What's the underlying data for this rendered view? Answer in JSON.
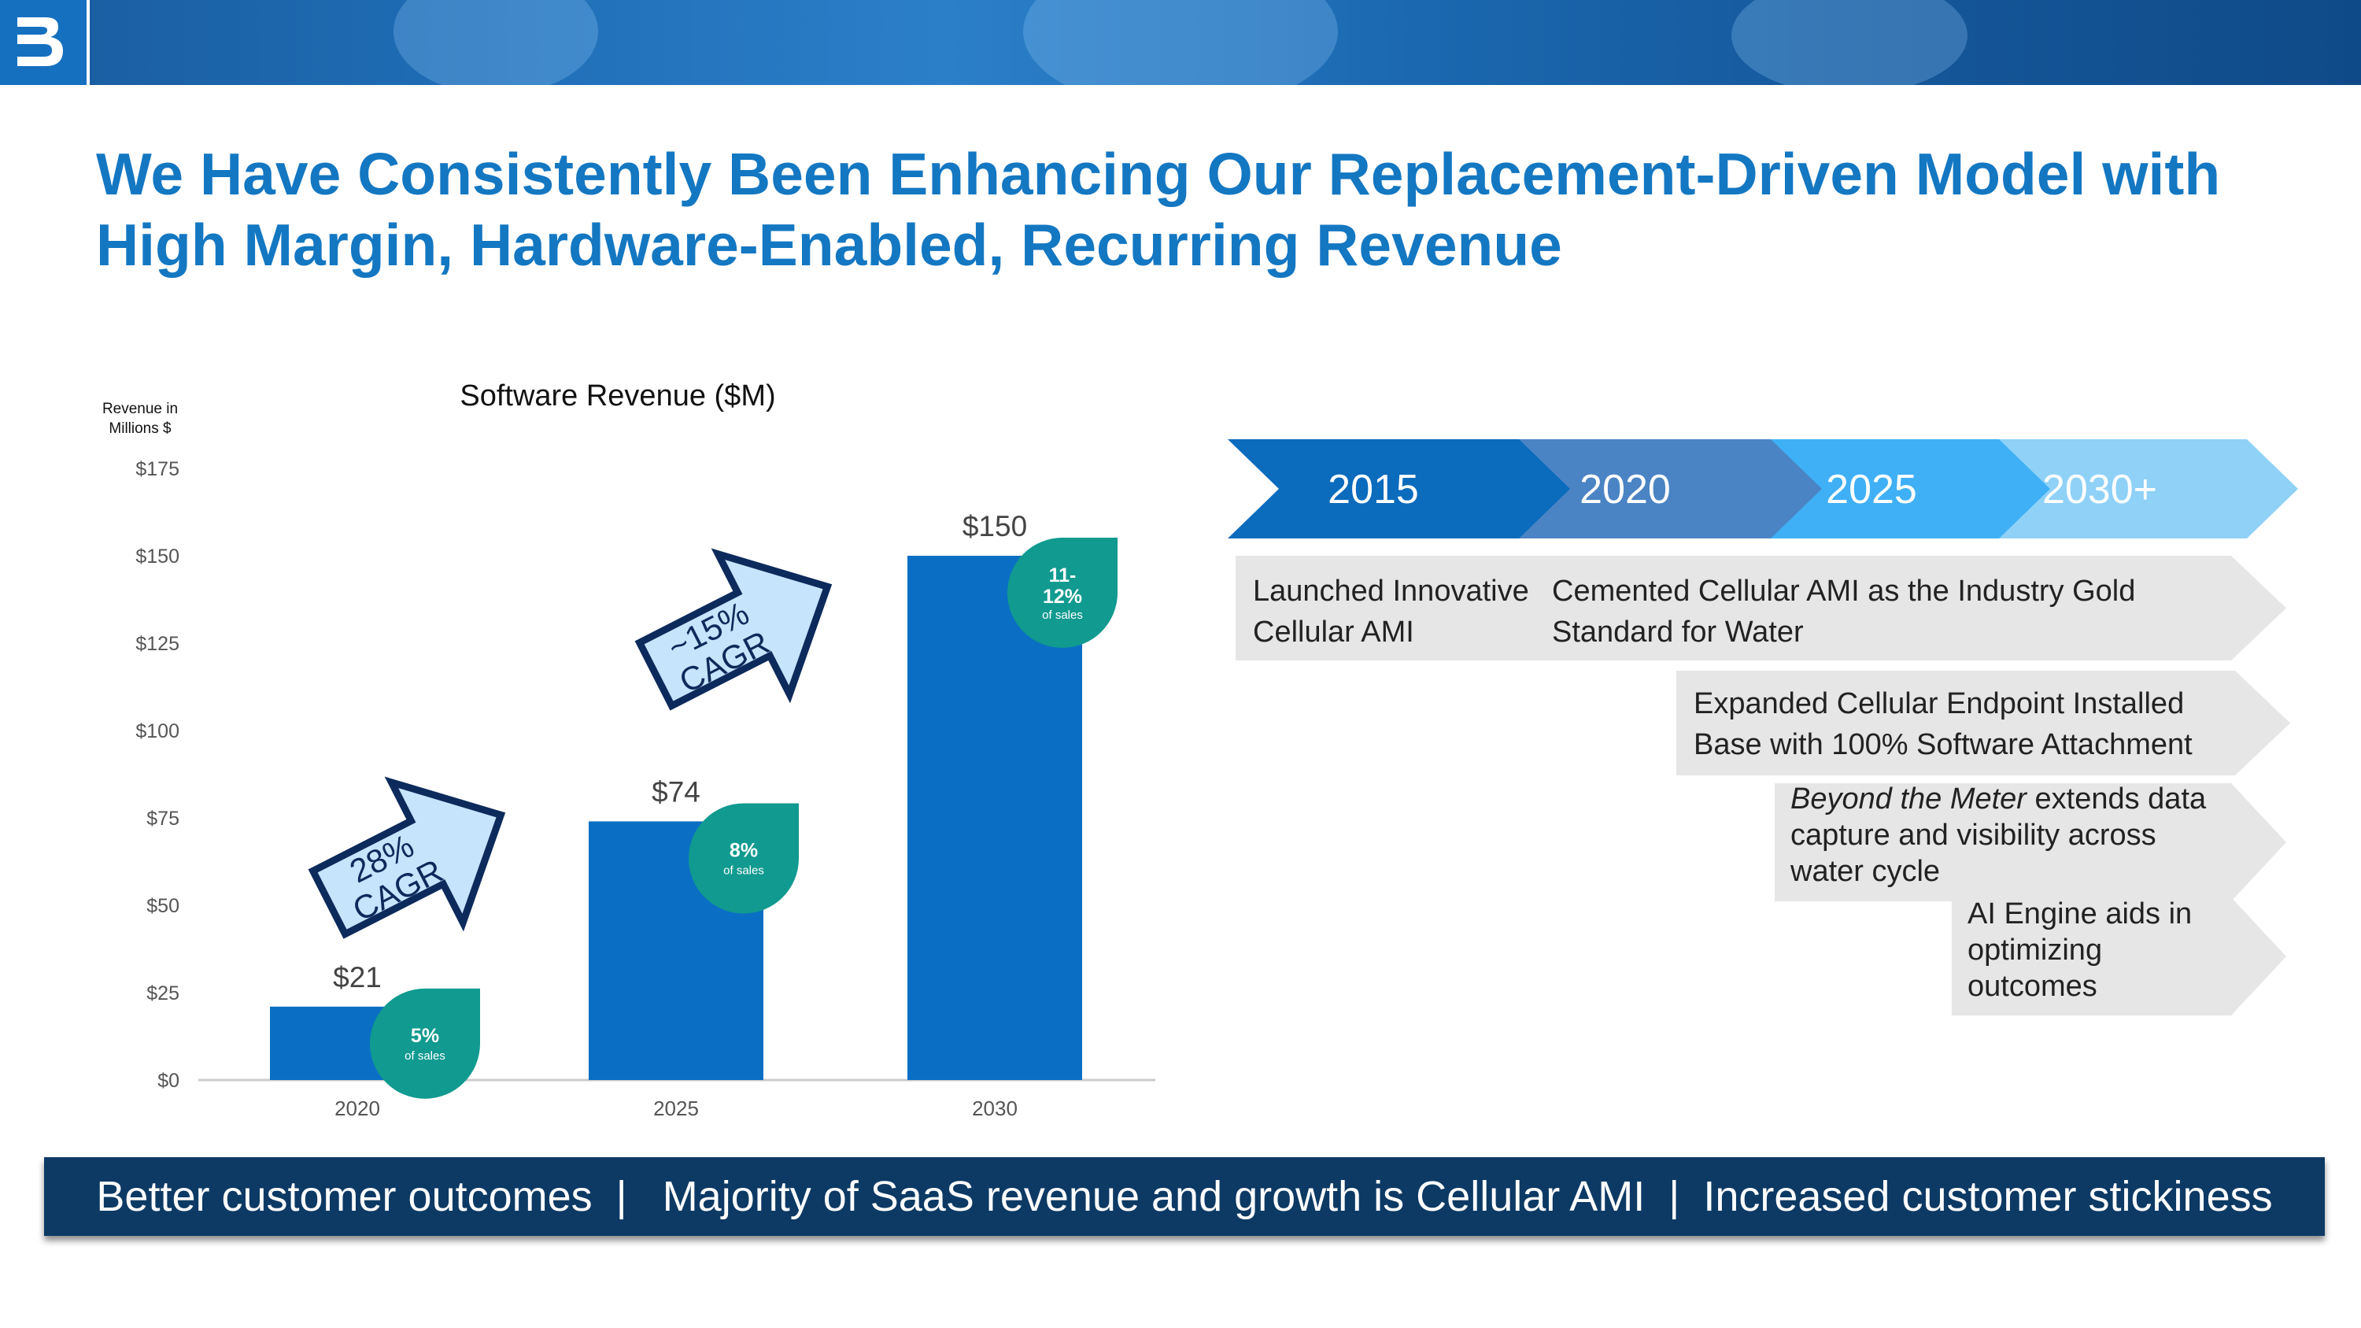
{
  "slide": {
    "title": "We Have Consistently Been Enhancing Our Replacement-Driven Model with High Margin, Hardware-Enabled, Recurring Revenue",
    "bottom_banner": "Better customer outcomes  |   Majority of SaaS revenue and growth is Cellular AMI  |  Increased customer stickiness"
  },
  "colors": {
    "brand_blue": "#1477c2",
    "bar": "#0a6fc4",
    "badge": "#119a8f",
    "banner": "#0d3a64"
  },
  "chart_data": {
    "type": "bar",
    "title": "Software Revenue ($M)",
    "ylabel_line1": "Revenue in",
    "ylabel_line2": "Millions $",
    "categories": [
      "2020",
      "2025",
      "2030"
    ],
    "values": [
      21,
      74,
      150
    ],
    "value_labels": [
      "$21",
      "$74",
      "$150"
    ],
    "ylim": [
      0,
      175
    ],
    "yticks": [
      "$0",
      "$25",
      "$50",
      "$75",
      "$100",
      "$125",
      "$150",
      "$175"
    ],
    "grid": false,
    "badges": [
      {
        "pct_line1": "5%",
        "pct_line2": "",
        "sub": "of sales"
      },
      {
        "pct_line1": "8%",
        "pct_line2": "",
        "sub": "of sales"
      },
      {
        "pct_line1": "11-",
        "pct_line2": "12%",
        "sub": "of sales"
      }
    ],
    "cagr_arrows": [
      {
        "line1": "28%",
        "line2": "CAGR"
      },
      {
        "line1": "~15%",
        "line2": "CAGR"
      }
    ]
  },
  "timeline": {
    "years": [
      "2015",
      "2020",
      "2025",
      "2030+"
    ],
    "year_colors": [
      "#0b6bbd",
      "#4b84c4",
      "#3fb0f5",
      "#8fd1f7"
    ],
    "milestones": [
      {
        "lines": [
          "Launched Innovative",
          "Cellular AMI"
        ]
      },
      {
        "lines": [
          "Cemented Cellular AMI as the Industry Gold",
          "Standard for Water"
        ]
      },
      {
        "lines": [
          "Expanded Cellular Endpoint Installed",
          "Base with 100% Software Attachment"
        ]
      },
      {
        "italic": "Beyond the Meter",
        "lines": [
          " extends data",
          "capture and visibility across",
          "water cycle"
        ]
      },
      {
        "lines": [
          "AI Engine aids in",
          "optimizing",
          "outcomes"
        ]
      }
    ]
  }
}
